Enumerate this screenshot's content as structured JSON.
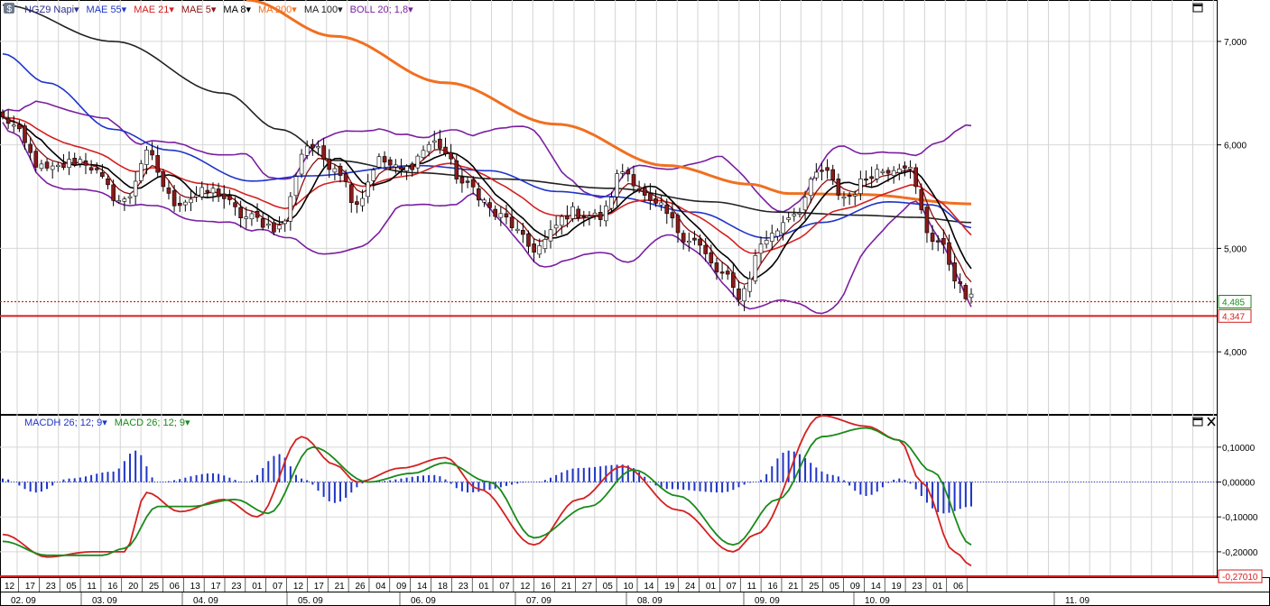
{
  "price_legend": [
    {
      "label": "NGZ9 Napi",
      "color": "#2b2f8f"
    },
    {
      "label": "MAE 55",
      "color": "#1f35c8"
    },
    {
      "label": "MAE 21",
      "color": "#d42020"
    },
    {
      "label": "MAE 5",
      "color": "#8a1010"
    },
    {
      "label": "MA 8",
      "color": "#000000"
    },
    {
      "label": "MA 200",
      "color": "#f07020"
    },
    {
      "label": "MA 100",
      "color": "#222222"
    },
    {
      "label": "BOLL 20; 1,8",
      "color": "#7a1fa0"
    }
  ],
  "macd_legend": [
    {
      "label": "MACDH 26; 12; 9",
      "color": "#1f35c8"
    },
    {
      "label": "MACD 26; 12; 9",
      "color": "#1a8a1a"
    }
  ],
  "price_axis": {
    "ticks": [
      "7,000",
      "6,000",
      "5,000",
      "4,000"
    ],
    "values": [
      7.0,
      6.0,
      5.0,
      4.0
    ],
    "ylim": [
      3.4,
      7.4
    ]
  },
  "price_markers": [
    {
      "label": "4,485",
      "value": 4.485,
      "color": "#1a8a1a",
      "style": "dotted red line"
    },
    {
      "label": "4,347",
      "value": 4.347,
      "color": "#d42020",
      "style": "solid red line"
    }
  ],
  "macd_axis": {
    "ticks": [
      "0,10000",
      "0,00000",
      "-0,10000",
      "-0,20000"
    ],
    "values": [
      0.1,
      0.0,
      -0.1,
      -0.2
    ],
    "ylim": [
      -0.27,
      0.19
    ]
  },
  "macd_marker": {
    "label": "-0,27010",
    "value": -0.2701,
    "color": "#d42020"
  },
  "x_axis": {
    "days": [
      "12",
      "17",
      "23",
      "05",
      "11",
      "16",
      "20",
      "25",
      "06",
      "13",
      "17",
      "23",
      "01",
      "07",
      "12",
      "17",
      "21",
      "26",
      "04",
      "09",
      "14",
      "18",
      "23",
      "01",
      "07",
      "12",
      "16",
      "21",
      "27",
      "05",
      "10",
      "14",
      "19",
      "24",
      "01",
      "07",
      "11",
      "16",
      "21",
      "25",
      "05",
      "09",
      "14",
      "19",
      "23",
      "01",
      "06"
    ],
    "months": [
      "02. 09",
      "03. 09",
      "04. 09",
      "05. 09",
      "06. 09",
      "07. 09",
      "08. 09",
      "09. 09",
      "10. 09",
      "11. 09"
    ]
  },
  "chart_data": [
    {
      "type": "candlestick",
      "title": "NGZ9 Napi",
      "n_bars": 176,
      "ylim": [
        3.4,
        7.4
      ],
      "anchors": [
        {
          "bar": 0,
          "close": 6.25
        },
        {
          "bar": 8,
          "close": 5.75
        },
        {
          "bar": 14,
          "close": 5.85
        },
        {
          "bar": 22,
          "close": 5.45
        },
        {
          "bar": 26,
          "close": 5.9
        },
        {
          "bar": 31,
          "close": 5.45
        },
        {
          "bar": 38,
          "close": 5.55
        },
        {
          "bar": 44,
          "close": 5.3
        },
        {
          "bar": 50,
          "close": 5.2
        },
        {
          "bar": 55,
          "close": 6.0
        },
        {
          "bar": 60,
          "close": 5.8
        },
        {
          "bar": 64,
          "close": 5.45
        },
        {
          "bar": 68,
          "close": 5.85
        },
        {
          "bar": 72,
          "close": 5.75
        },
        {
          "bar": 78,
          "close": 6.02
        },
        {
          "bar": 84,
          "close": 5.6
        },
        {
          "bar": 90,
          "close": 5.3
        },
        {
          "bar": 96,
          "close": 5.0
        },
        {
          "bar": 103,
          "close": 5.35
        },
        {
          "bar": 108,
          "close": 5.3
        },
        {
          "bar": 112,
          "close": 5.75
        },
        {
          "bar": 118,
          "close": 5.4
        },
        {
          "bar": 124,
          "close": 5.1
        },
        {
          "bar": 130,
          "close": 4.75
        },
        {
          "bar": 133,
          "close": 4.55
        },
        {
          "bar": 138,
          "close": 5.1
        },
        {
          "bar": 143,
          "close": 5.35
        },
        {
          "bar": 148,
          "close": 5.75
        },
        {
          "bar": 152,
          "close": 5.5
        },
        {
          "bar": 158,
          "close": 5.75
        },
        {
          "bar": 163,
          "close": 5.82
        },
        {
          "bar": 168,
          "close": 5.1
        },
        {
          "bar": 175,
          "close": 4.5
        }
      ],
      "overlays": [
        {
          "name": "MA 200",
          "color": "#f07020",
          "points": [
            [
              44,
              7.4
            ],
            [
              60,
              7.05
            ],
            [
              80,
              6.6
            ],
            [
              100,
              6.2
            ],
            [
              120,
              5.8
            ],
            [
              135,
              5.62
            ],
            [
              142,
              5.53
            ],
            [
              155,
              5.52
            ],
            [
              175,
              5.43
            ]
          ]
        },
        {
          "name": "MA 100",
          "color": "#222222",
          "points": [
            [
              0,
              7.35
            ],
            [
              20,
              7.0
            ],
            [
              40,
              6.5
            ],
            [
              50,
              6.15
            ],
            [
              60,
              5.85
            ],
            [
              75,
              5.73
            ],
            [
              90,
              5.67
            ],
            [
              110,
              5.58
            ],
            [
              128,
              5.45
            ],
            [
              140,
              5.35
            ],
            [
              155,
              5.32
            ],
            [
              165,
              5.3
            ],
            [
              175,
              5.25
            ]
          ]
        },
        {
          "name": "MAE 55",
          "color": "#1f35c8",
          "points": [
            [
              0,
              6.88
            ],
            [
              8,
              6.6
            ],
            [
              20,
              6.15
            ],
            [
              30,
              5.95
            ],
            [
              45,
              5.65
            ],
            [
              55,
              5.7
            ],
            [
              75,
              5.8
            ],
            [
              88,
              5.75
            ],
            [
              100,
              5.55
            ],
            [
              110,
              5.5
            ],
            [
              125,
              5.35
            ],
            [
              138,
              5.1
            ],
            [
              148,
              5.25
            ],
            [
              160,
              5.45
            ],
            [
              168,
              5.42
            ],
            [
              175,
              5.2
            ]
          ]
        }
      ]
    },
    {
      "type": "bar",
      "title": "MACDH 26; 12; 9",
      "series": [
        {
          "name": "MACDH 26; 12; 9",
          "color": "#1f35c8",
          "anchors": [
            [
              0,
              0.01
            ],
            [
              6,
              -0.03
            ],
            [
              12,
              0.01
            ],
            [
              20,
              0.03
            ],
            [
              24,
              0.09
            ],
            [
              28,
              0.0
            ],
            [
              38,
              0.025
            ],
            [
              44,
              0.0
            ],
            [
              50,
              0.08
            ],
            [
              54,
              0.01
            ],
            [
              60,
              -0.06
            ],
            [
              66,
              0.0
            ],
            [
              78,
              0.02
            ],
            [
              84,
              -0.03
            ],
            [
              96,
              0.0
            ],
            [
              104,
              0.04
            ],
            [
              112,
              0.05
            ],
            [
              120,
              -0.02
            ],
            [
              130,
              -0.03
            ],
            [
              136,
              0.0
            ],
            [
              142,
              0.09
            ],
            [
              150,
              0.02
            ],
            [
              156,
              -0.04
            ],
            [
              162,
              0.01
            ],
            [
              170,
              -0.09
            ],
            [
              175,
              -0.07
            ]
          ]
        }
      ]
    },
    {
      "type": "line",
      "title": "MACD 26; 12; 9",
      "series": [
        {
          "name": "MACD",
          "color": "#d42020",
          "anchors": [
            [
              0,
              -0.15
            ],
            [
              8,
              -0.215
            ],
            [
              16,
              -0.2
            ],
            [
              22,
              -0.2
            ],
            [
              26,
              -0.03
            ],
            [
              32,
              -0.085
            ],
            [
              40,
              -0.05
            ],
            [
              46,
              -0.1
            ],
            [
              54,
              0.13
            ],
            [
              60,
              0.05
            ],
            [
              64,
              0.0
            ],
            [
              72,
              0.04
            ],
            [
              80,
              0.07
            ],
            [
              86,
              -0.02
            ],
            [
              96,
              -0.18
            ],
            [
              104,
              -0.05
            ],
            [
              112,
              0.045
            ],
            [
              122,
              -0.08
            ],
            [
              132,
              -0.2
            ],
            [
              136,
              -0.15
            ],
            [
              148,
              0.19
            ],
            [
              156,
              0.16
            ],
            [
              162,
              0.12
            ],
            [
              166,
              0.0
            ],
            [
              172,
              -0.2
            ],
            [
              175,
              -0.24
            ]
          ]
        },
        {
          "name": "MACD 26; 12; 9",
          "color": "#1a8a1a",
          "anchors": [
            [
              0,
              -0.17
            ],
            [
              8,
              -0.21
            ],
            [
              18,
              -0.21
            ],
            [
              22,
              -0.19
            ],
            [
              28,
              -0.07
            ],
            [
              34,
              -0.07
            ],
            [
              42,
              -0.05
            ],
            [
              48,
              -0.09
            ],
            [
              56,
              0.1
            ],
            [
              66,
              0.0
            ],
            [
              74,
              0.025
            ],
            [
              80,
              0.055
            ],
            [
              88,
              0.0
            ],
            [
              96,
              -0.16
            ],
            [
              106,
              -0.07
            ],
            [
              114,
              0.035
            ],
            [
              122,
              -0.04
            ],
            [
              132,
              -0.18
            ],
            [
              140,
              -0.05
            ],
            [
              148,
              0.13
            ],
            [
              156,
              0.155
            ],
            [
              162,
              0.12
            ],
            [
              168,
              0.03
            ],
            [
              175,
              -0.18
            ]
          ]
        }
      ]
    }
  ]
}
